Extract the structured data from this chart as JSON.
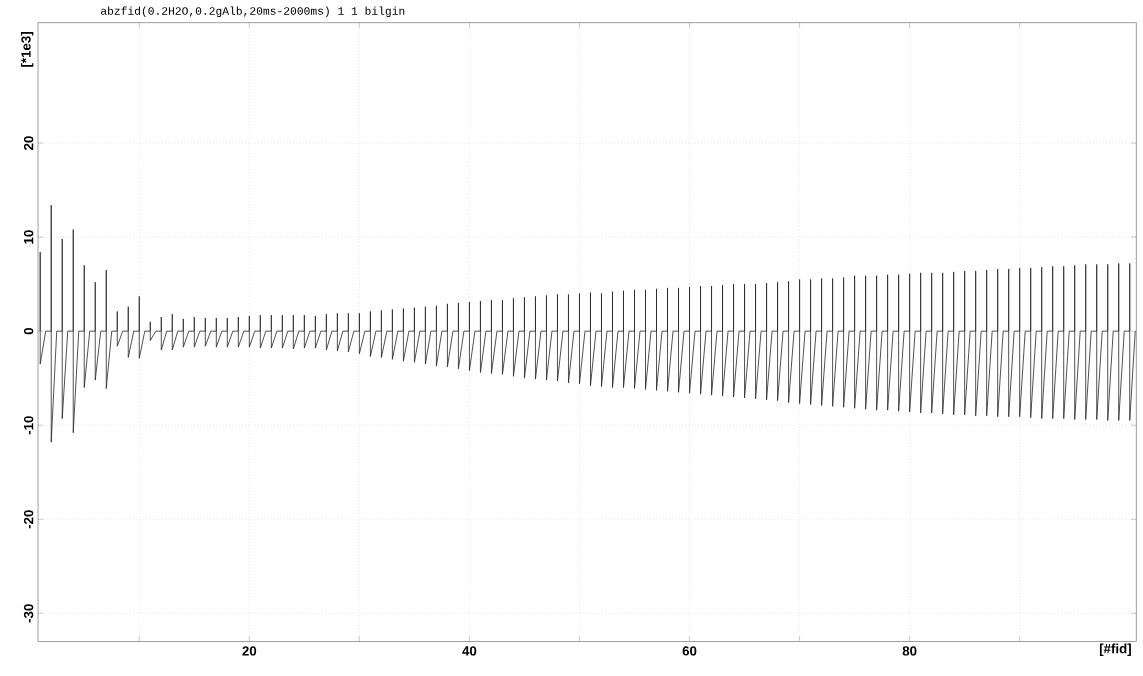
{
  "chart_data": {
    "type": "line",
    "title": "abzfid(0.2H2O,0.2gAlb,20ms-2000ms)  1  1  bilgin",
    "xlabel": "[#fid]",
    "ylabel": "[*1e3]",
    "color": "#262626",
    "grid": true,
    "xlim": [
      0.8,
      100.6
    ],
    "ylim": [
      -33,
      32.8
    ],
    "xticks": [
      {
        "value": 10,
        "label": null
      },
      20,
      {
        "value": 30,
        "label": null
      },
      40,
      {
        "value": 50,
        "label": null
      },
      60,
      {
        "value": 70,
        "label": null
      },
      80,
      {
        "value": 90,
        "label": null
      }
    ],
    "yticks": [
      -30,
      -20,
      -10,
      0,
      10,
      20
    ],
    "x": [
      1,
      1,
      1,
      1.5,
      2,
      2,
      2,
      2.5,
      3,
      3,
      3,
      3.5,
      4,
      4,
      4,
      4.5,
      5,
      5,
      5,
      5.5,
      6,
      6,
      6,
      6.5,
      7,
      7,
      7,
      7.5,
      8,
      8,
      8,
      8.5,
      9,
      9,
      9,
      9.5,
      10,
      10,
      10,
      10.5,
      11,
      11,
      11,
      11.5,
      12,
      12,
      12,
      12.5,
      13,
      13,
      13,
      13.5,
      14,
      14,
      14,
      14.5,
      15,
      15,
      15,
      15.5,
      16,
      16,
      16,
      16.5,
      17,
      17,
      17,
      17.5,
      18,
      18,
      18,
      18.5,
      19,
      19,
      19,
      19.5,
      20,
      20,
      20,
      20.5,
      21,
      21,
      21,
      21.5,
      22,
      22,
      22,
      22.5,
      23,
      23,
      23,
      23.5,
      24,
      24,
      24,
      24.5,
      25,
      25,
      25,
      25.5,
      26,
      26,
      26,
      26.5,
      27,
      27,
      27,
      27.5,
      28,
      28,
      28,
      28.5,
      29,
      29,
      29,
      29.5,
      30,
      30,
      30,
      30.5,
      31,
      31,
      31,
      31.5,
      32,
      32,
      32,
      32.5,
      33,
      33,
      33,
      33.5,
      34,
      34,
      34,
      34.5,
      35,
      35,
      35,
      35.5,
      36,
      36,
      36,
      36.5,
      37,
      37,
      37,
      37.5,
      38,
      38,
      38,
      38.5,
      39,
      39,
      39,
      39.5,
      40,
      40,
      40,
      40.5,
      41,
      41,
      41,
      41.5,
      42,
      42,
      42,
      42.5,
      43,
      43,
      43,
      43.5,
      44,
      44,
      44,
      44.5,
      45,
      45,
      45,
      45.5,
      46,
      46,
      46,
      46.5,
      47,
      47,
      47,
      47.5,
      48,
      48,
      48,
      48.5,
      49,
      49,
      49,
      49.5,
      50,
      50,
      50,
      50.5,
      51,
      51,
      51,
      51.5,
      52,
      52,
      52,
      52.5,
      53,
      53,
      53,
      53.5,
      54,
      54,
      54,
      54.5,
      55,
      55,
      55,
      55.5,
      56,
      56,
      56,
      56.5,
      57,
      57,
      57,
      57.5,
      58,
      58,
      58,
      58.5,
      59,
      59,
      59,
      59.5,
      60,
      60,
      60,
      60.5,
      61,
      61,
      61,
      61.5,
      62,
      62,
      62,
      62.5,
      63,
      63,
      63,
      63.5,
      64,
      64,
      64,
      64.5,
      65,
      65,
      65,
      65.5,
      66,
      66,
      66,
      66.5,
      67,
      67,
      67,
      67.5,
      68,
      68,
      68,
      68.5,
      69,
      69,
      69,
      69.5,
      70,
      70,
      70,
      70.5,
      71,
      71,
      71,
      71.5,
      72,
      72,
      72,
      72.5,
      73,
      73,
      73,
      73.5,
      74,
      74,
      74,
      74.5,
      75,
      75,
      75,
      75.5,
      76,
      76,
      76,
      76.5,
      77,
      77,
      77,
      77.5,
      78,
      78,
      78,
      78.5,
      79,
      79,
      79,
      79.5,
      80,
      80,
      80,
      80.5,
      81,
      81,
      81,
      81.5,
      82,
      82,
      82,
      82.5,
      83,
      83,
      83,
      83.5,
      84,
      84,
      84,
      84.5,
      85,
      85,
      85,
      85.5,
      86,
      86,
      86,
      86.5,
      87,
      87,
      87,
      87.5,
      88,
      88,
      88,
      88.5,
      89,
      89,
      89,
      89.5,
      90,
      90,
      90,
      90.5,
      91,
      91,
      91,
      91.5,
      92,
      92,
      92,
      92.5,
      93,
      93,
      93,
      93.5,
      94,
      94,
      94,
      94.5,
      95,
      95,
      95,
      95.5,
      96,
      96,
      96,
      96.5,
      97,
      97,
      97,
      97.5,
      98,
      98,
      98,
      98.5,
      99,
      99,
      99,
      99.5,
      100,
      100,
      100,
      100.5
    ],
    "values": [
      0,
      8.4,
      -3.5,
      0,
      0,
      13.4,
      -11.8,
      0,
      0,
      9.8,
      -9.3,
      0,
      0,
      10.8,
      -10.8,
      0,
      0,
      7.0,
      -6.0,
      0,
      0,
      5.2,
      -5.2,
      0,
      0,
      6.5,
      -6.1,
      0,
      0,
      2.1,
      -1.6,
      0,
      0,
      2.6,
      -2.8,
      0,
      0,
      3.7,
      -2.9,
      0,
      0,
      1.0,
      -1.0,
      0,
      0,
      1.5,
      -2.0,
      0,
      0,
      1.8,
      -2.0,
      0,
      0,
      1.3,
      -1.7,
      0,
      0,
      1.5,
      -1.7,
      0,
      0,
      1.4,
      -1.6,
      0,
      0,
      1.4,
      -1.7,
      0,
      0,
      1.4,
      -1.7,
      0,
      0,
      1.5,
      -1.7,
      0,
      0,
      1.6,
      -1.7,
      0,
      0,
      1.7,
      -1.8,
      0,
      0,
      1.7,
      -1.8,
      0,
      0,
      1.7,
      -1.8,
      0,
      0,
      1.7,
      -1.9,
      0,
      0,
      1.7,
      -1.8,
      0,
      0,
      1.6,
      -1.8,
      0,
      0,
      1.8,
      -2.0,
      0,
      0,
      1.9,
      -2.1,
      0,
      0,
      1.9,
      -2.2,
      0,
      0,
      1.9,
      -2.4,
      0,
      0,
      2.1,
      -2.7,
      0,
      0,
      2.2,
      -2.8,
      0,
      0,
      2.3,
      -3.0,
      0,
      0,
      2.4,
      -3.2,
      0,
      0,
      2.5,
      -3.3,
      0,
      0,
      2.6,
      -3.5,
      0,
      0,
      2.7,
      -3.7,
      0,
      0,
      2.9,
      -3.8,
      0,
      0,
      3.0,
      -4.0,
      0,
      0,
      3.1,
      -4.2,
      0,
      0,
      3.2,
      -4.4,
      0,
      0,
      3.3,
      -4.5,
      0,
      0,
      3.3,
      -4.6,
      0,
      0,
      3.5,
      -4.8,
      0,
      0,
      3.6,
      -5.0,
      0,
      0,
      3.7,
      -5.1,
      0,
      0,
      3.8,
      -5.2,
      0,
      0,
      3.9,
      -5.3,
      0,
      0,
      3.9,
      -5.5,
      0,
      0,
      4.0,
      -5.6,
      0,
      0,
      4.1,
      -5.8,
      0,
      0,
      4.0,
      -5.9,
      0,
      0,
      4.2,
      -6.0,
      0,
      0,
      4.3,
      -6.0,
      0,
      0,
      4.4,
      -6.1,
      0,
      0,
      4.4,
      -6.2,
      0,
      0,
      4.5,
      -6.3,
      0,
      0,
      4.6,
      -6.4,
      0,
      0,
      4.6,
      -6.5,
      0,
      0,
      4.7,
      -6.6,
      0,
      0,
      4.8,
      -6.7,
      0,
      0,
      4.8,
      -6.8,
      0,
      0,
      4.9,
      -6.9,
      0,
      0,
      5.0,
      -7.0,
      0,
      0,
      5.0,
      -7.1,
      0,
      0,
      5.0,
      -7.2,
      0,
      0,
      5.1,
      -7.3,
      0,
      0,
      5.2,
      -7.4,
      0,
      0,
      5.3,
      -7.6,
      0,
      0,
      5.5,
      -7.7,
      0,
      0,
      5.5,
      -7.8,
      0,
      0,
      5.6,
      -7.9,
      0,
      0,
      5.6,
      -8.0,
      0,
      0,
      5.7,
      -8.1,
      0,
      0,
      5.9,
      -8.2,
      0,
      0,
      5.9,
      -8.3,
      0,
      0,
      5.9,
      -8.4,
      0,
      0,
      6.0,
      -8.4,
      0,
      0,
      6.0,
      -8.5,
      0,
      0,
      6.1,
      -8.6,
      0,
      0,
      6.2,
      -8.7,
      0,
      0,
      6.2,
      -8.7,
      0,
      0,
      6.2,
      -8.8,
      0,
      0,
      6.3,
      -8.9,
      0,
      0,
      6.4,
      -8.9,
      0,
      0,
      6.4,
      -9.0,
      0,
      0,
      6.5,
      -9.0,
      0,
      0,
      6.6,
      -9.1,
      0,
      0,
      6.6,
      -9.1,
      0,
      0,
      6.7,
      -9.1,
      0,
      0,
      6.7,
      -9.2,
      0,
      0,
      6.8,
      -9.3,
      0,
      0,
      6.9,
      -9.3,
      0,
      0,
      6.9,
      -9.3,
      0,
      0,
      7.0,
      -9.4,
      0,
      0,
      7.1,
      -9.4,
      0,
      0,
      7.1,
      -9.4,
      0,
      0,
      7.1,
      -9.5,
      0,
      0,
      7.2,
      -9.5,
      0,
      0,
      7.2,
      -9.5,
      0
    ]
  }
}
